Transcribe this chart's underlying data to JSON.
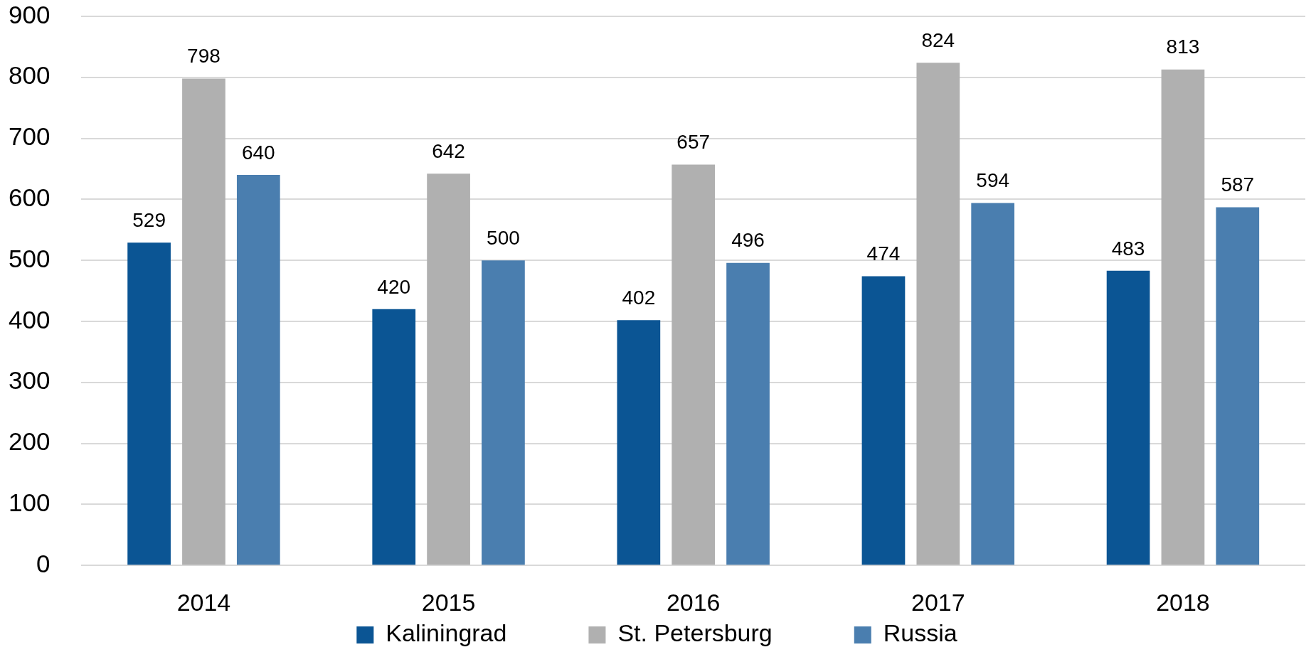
{
  "chart_data": {
    "type": "bar",
    "categories": [
      "2014",
      "2015",
      "2016",
      "2017",
      "2018"
    ],
    "series": [
      {
        "name": "Kaliningrad",
        "color": "#0b5594",
        "values": [
          529,
          420,
          402,
          474,
          483
        ]
      },
      {
        "name": "St. Petersburg",
        "color": "#b0b0b0",
        "values": [
          798,
          642,
          657,
          824,
          813
        ]
      },
      {
        "name": "Russia",
        "color": "#4a7eaf",
        "values": [
          640,
          500,
          496,
          594,
          587
        ]
      }
    ],
    "ylim": [
      0,
      900
    ],
    "yticks": [
      0,
      100,
      200,
      300,
      400,
      500,
      600,
      700,
      800,
      900
    ],
    "grid": "y",
    "legend": "bottom",
    "data_labels": true
  }
}
